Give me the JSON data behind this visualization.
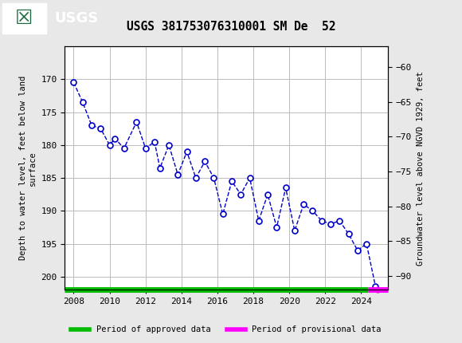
{
  "title": "USGS 381753076310001 SM De  52",
  "ylabel_left": "Depth to water level, feet below land\nsurface",
  "ylabel_right": "Groundwater level above NGVD 1929, feet",
  "xlim": [
    2007.5,
    2025.5
  ],
  "ylim_left": [
    202,
    165
  ],
  "ylim_right": [
    -92,
    -57
  ],
  "yticks_left": [
    170,
    175,
    180,
    185,
    190,
    195,
    200
  ],
  "yticks_right": [
    -60,
    -65,
    -70,
    -75,
    -80,
    -85,
    -90
  ],
  "xticks": [
    2008,
    2010,
    2012,
    2014,
    2016,
    2018,
    2020,
    2022,
    2024
  ],
  "fig_bg_color": "#e8e8e8",
  "plot_bg_color": "#ffffff",
  "header_color": "#1a6b3c",
  "grid_color": "#bbbbbb",
  "data_color": "#0000cc",
  "approved_color": "#00bb00",
  "provisional_color": "#ff00ff",
  "years": [
    2008.0,
    2008.5,
    2009.0,
    2009.5,
    2010.0,
    2010.3,
    2010.8,
    2011.5,
    2012.0,
    2012.5,
    2012.8,
    2013.3,
    2013.8,
    2014.3,
    2014.8,
    2015.3,
    2015.8,
    2016.3,
    2016.8,
    2017.3,
    2017.8,
    2018.3,
    2018.8,
    2019.3,
    2019.8,
    2020.3,
    2020.8,
    2021.3,
    2021.8,
    2022.3,
    2022.8,
    2023.3,
    2023.8,
    2024.3,
    2024.8
  ],
  "depths": [
    170.5,
    173.5,
    177.0,
    177.5,
    180.0,
    179.0,
    180.5,
    176.5,
    180.5,
    179.5,
    183.5,
    180.0,
    184.5,
    181.0,
    185.0,
    182.5,
    185.0,
    190.5,
    185.5,
    187.5,
    185.0,
    191.5,
    187.5,
    192.5,
    186.5,
    193.0,
    189.0,
    190.0,
    191.5,
    192.0,
    191.5,
    193.5,
    196.0,
    195.0,
    201.5
  ],
  "approved_end_year": 2024.4,
  "provisional_start_year": 2024.4,
  "provisional_end_year": 2025.4,
  "legend_approved": "Period of approved data",
  "legend_provisional": "Period of provisional data"
}
